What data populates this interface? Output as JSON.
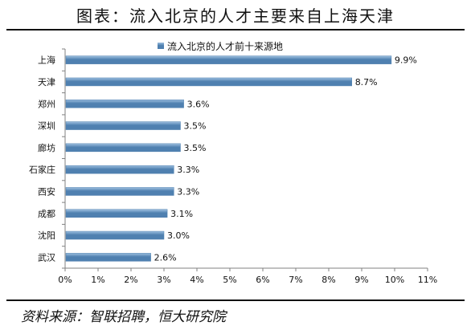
{
  "page_title": "图表：流入北京的人才主要来自上海天津",
  "source": "资料来源：智联招聘，恒大研究院",
  "colors": {
    "bar": "#4f80b0",
    "bar_light": "#9ec0e0",
    "axis": "#808080"
  },
  "chart_data": {
    "type": "bar",
    "orientation": "horizontal",
    "legend": {
      "label": "流入北京的人才前十来源地",
      "position": "top"
    },
    "categories": [
      "上海",
      "天津",
      "郑州",
      "深圳",
      "廊坊",
      "石家庄",
      "西安",
      "成都",
      "沈阳",
      "武汉"
    ],
    "series": [
      {
        "name": "流入北京的人才前十来源地",
        "values": [
          9.9,
          8.7,
          3.6,
          3.5,
          3.5,
          3.3,
          3.3,
          3.1,
          3.0,
          2.6
        ],
        "labels": [
          "9.9%",
          "8.7%",
          "3.6%",
          "3.5%",
          "3.5%",
          "3.3%",
          "3.3%",
          "3.1%",
          "3.0%",
          "2.6%"
        ]
      }
    ],
    "xlim": [
      0,
      11
    ],
    "xticks": [
      "0%",
      "1%",
      "2%",
      "3%",
      "4%",
      "5%",
      "6%",
      "7%",
      "8%",
      "9%",
      "10%",
      "11%"
    ],
    "grid": false
  }
}
